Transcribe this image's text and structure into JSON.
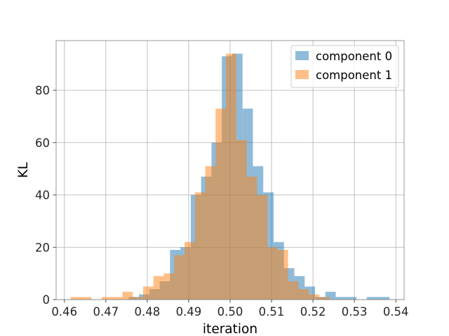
{
  "chart_data": {
    "type": "histogram",
    "xlabel": "iteration",
    "ylabel": "KL",
    "xlim": [
      0.458,
      0.542
    ],
    "ylim": [
      0,
      99
    ],
    "xticks": [
      0.46,
      0.47,
      0.48,
      0.49,
      0.5,
      0.51,
      0.52,
      0.53,
      0.54
    ],
    "xtick_labels": [
      "0.46",
      "0.47",
      "0.48",
      "0.49",
      "0.50",
      "0.51",
      "0.52",
      "0.53",
      "0.54"
    ],
    "yticks": [
      0,
      20,
      40,
      60,
      80
    ],
    "ytick_labels": [
      "0",
      "20",
      "40",
      "60",
      "80"
    ],
    "grid": true,
    "legend_position": "top-right",
    "series": [
      {
        "name": "component 0",
        "color": "#1f77b4",
        "opacity": 0.5,
        "bins": [
          [
            0.4755,
            0.478,
            1
          ],
          [
            0.478,
            0.4805,
            2
          ],
          [
            0.4805,
            0.483,
            4
          ],
          [
            0.483,
            0.4855,
            7
          ],
          [
            0.4855,
            0.488,
            19
          ],
          [
            0.488,
            0.4905,
            20
          ],
          [
            0.4905,
            0.493,
            40
          ],
          [
            0.493,
            0.4955,
            47
          ],
          [
            0.4955,
            0.498,
            60
          ],
          [
            0.498,
            0.5005,
            93
          ],
          [
            0.5005,
            0.503,
            94
          ],
          [
            0.503,
            0.5055,
            73
          ],
          [
            0.5055,
            0.508,
            51
          ],
          [
            0.508,
            0.5105,
            41
          ],
          [
            0.5105,
            0.513,
            22
          ],
          [
            0.513,
            0.5155,
            12
          ],
          [
            0.5155,
            0.518,
            9
          ],
          [
            0.518,
            0.5205,
            5
          ],
          [
            0.5205,
            0.523,
            1
          ],
          [
            0.523,
            0.5255,
            3
          ],
          [
            0.5255,
            0.528,
            1
          ],
          [
            0.528,
            0.5305,
            1
          ],
          [
            0.5305,
            0.533,
            0
          ],
          [
            0.533,
            0.5355,
            1
          ],
          [
            0.5355,
            0.5385,
            1
          ]
        ]
      },
      {
        "name": "component 1",
        "color": "#ff7f0e",
        "opacity": 0.5,
        "bins": [
          [
            0.4615,
            0.4665,
            1
          ],
          [
            0.4665,
            0.469,
            0
          ],
          [
            0.469,
            0.474,
            1
          ],
          [
            0.474,
            0.4765,
            3
          ],
          [
            0.4765,
            0.479,
            1
          ],
          [
            0.479,
            0.4815,
            5
          ],
          [
            0.4815,
            0.484,
            9
          ],
          [
            0.484,
            0.4865,
            10
          ],
          [
            0.4865,
            0.489,
            17
          ],
          [
            0.489,
            0.4915,
            22
          ],
          [
            0.4915,
            0.494,
            41
          ],
          [
            0.494,
            0.4965,
            51
          ],
          [
            0.4965,
            0.499,
            73
          ],
          [
            0.499,
            0.5015,
            94
          ],
          [
            0.5015,
            0.504,
            61
          ],
          [
            0.504,
            0.5065,
            47
          ],
          [
            0.5065,
            0.509,
            40
          ],
          [
            0.509,
            0.5115,
            20
          ],
          [
            0.5115,
            0.514,
            19
          ],
          [
            0.514,
            0.5165,
            7
          ],
          [
            0.5165,
            0.519,
            4
          ],
          [
            0.519,
            0.5215,
            2
          ],
          [
            0.5215,
            0.524,
            1
          ]
        ]
      }
    ]
  }
}
